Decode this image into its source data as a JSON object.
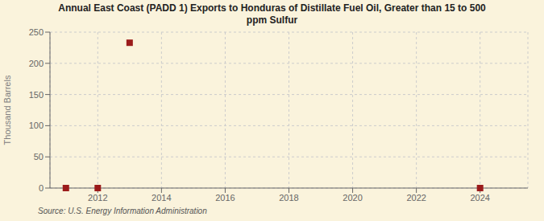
{
  "chart_data": {
    "type": "scatter",
    "title": "Annual East Coast (PADD 1) Exports to Honduras of Distillate Fuel Oil, Greater than 15 to 500\nppm Sulfur",
    "ylabel": "Thousand Barrels",
    "annotations": [
      "Source: U.S. Energy Information Administration"
    ],
    "x": [
      2011,
      2012,
      2013,
      2024
    ],
    "values": [
      0,
      0,
      233,
      0
    ],
    "color": "#9b1b1b",
    "marker": "square",
    "xlim": [
      2010.5,
      2025.5
    ],
    "ylim": [
      0,
      250
    ],
    "xticks": [
      2012,
      2014,
      2016,
      2018,
      2020,
      2022,
      2024
    ],
    "yticks": [
      0,
      50,
      100,
      150,
      200,
      250
    ],
    "grid": true
  }
}
